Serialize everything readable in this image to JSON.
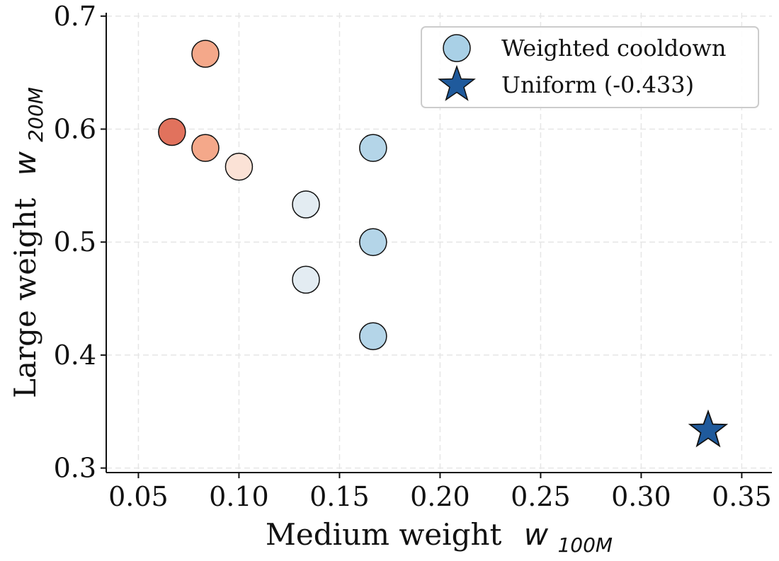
{
  "chart_data": {
    "type": "scatter",
    "title": "",
    "xlabel": {
      "text": "Medium weight",
      "symbol": "w",
      "subscript": "100M"
    },
    "ylabel": {
      "text": "Large weight",
      "symbol": "w",
      "subscript": "200M"
    },
    "xlim": [
      0.034,
      0.365
    ],
    "ylim": [
      0.296,
      0.703
    ],
    "xticks": [
      0.05,
      0.1,
      0.15,
      0.2,
      0.25,
      0.3,
      0.35
    ],
    "xtick_labels": [
      "0.05",
      "0.10",
      "0.15",
      "0.20",
      "0.25",
      "0.30",
      "0.35"
    ],
    "yticks": [
      0.3,
      0.4,
      0.5,
      0.6,
      0.7
    ],
    "ytick_labels": [
      "0.3",
      "0.4",
      "0.5",
      "0.6",
      "0.7"
    ],
    "grid": true,
    "legend_position": "top-right",
    "series": [
      {
        "name": "Weighted cooldown",
        "marker": "circle",
        "legend_color": "#a9d0e6",
        "points": [
          {
            "x": 0.0833,
            "y": 0.6667,
            "color": "#f4a88a"
          },
          {
            "x": 0.0667,
            "y": 0.5975,
            "color": "#e1725d"
          },
          {
            "x": 0.0833,
            "y": 0.5833,
            "color": "#f4a88a"
          },
          {
            "x": 0.1,
            "y": 0.5667,
            "color": "#fbe2d6"
          },
          {
            "x": 0.1333,
            "y": 0.5333,
            "color": "#e3ecf2"
          },
          {
            "x": 0.1333,
            "y": 0.4667,
            "color": "#e3ecf2"
          },
          {
            "x": 0.1667,
            "y": 0.5833,
            "color": "#b4d5e8"
          },
          {
            "x": 0.1667,
            "y": 0.5,
            "color": "#b4d5e8"
          },
          {
            "x": 0.1667,
            "y": 0.4167,
            "color": "#b4d5e8"
          }
        ]
      },
      {
        "name": "Uniform (-0.433)",
        "marker": "star",
        "legend_color": "#1f5a9c",
        "points": [
          {
            "x": 0.3333,
            "y": 0.3333,
            "color": "#1f5a9c"
          }
        ]
      }
    ]
  }
}
